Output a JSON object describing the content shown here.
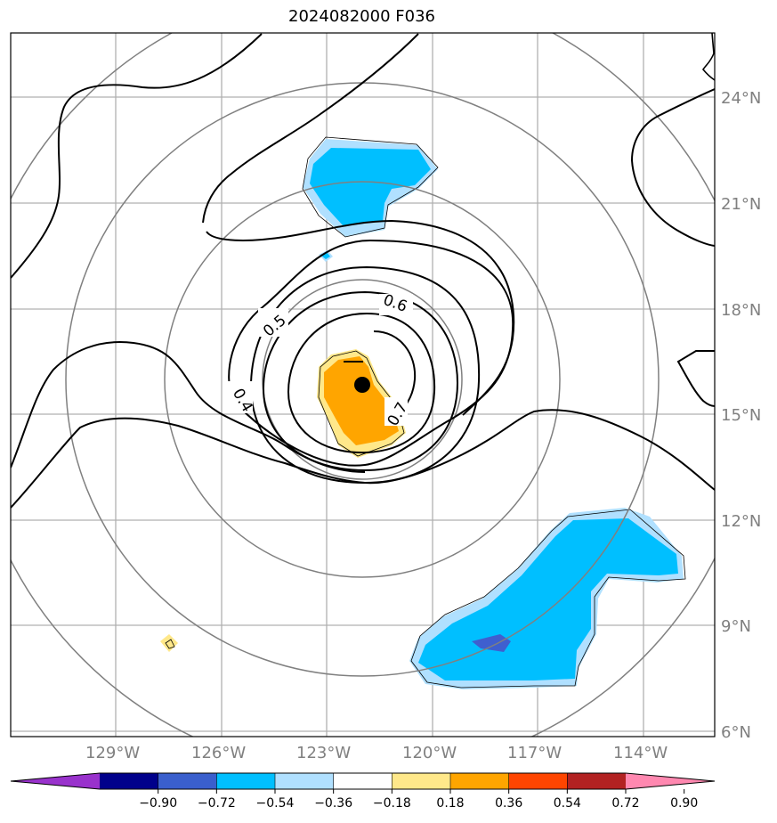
{
  "title": "2024082000 F036",
  "map": {
    "lat_labels": [
      "24°N",
      "21°N",
      "18°N",
      "15°N",
      "12°N",
      "9°N",
      "6°N"
    ],
    "lon_labels": [
      "129°W",
      "126°W",
      "123°W",
      "120°W",
      "117°W",
      "114°W"
    ],
    "contour_labels": [
      "0.4",
      "0.5",
      "0.6",
      "0.7"
    ],
    "center_marker": "storm-center",
    "colors": {
      "light_blue": "#b0e0ff",
      "sky_blue": "#00bfff",
      "royal_blue": "#3f5fcf",
      "yellow": "#ffe88a",
      "orange": "#ffa500",
      "contour": "#000000",
      "range_ring": "#808080",
      "grid": "#b0b0b0"
    }
  },
  "colorbar": {
    "ticks": [
      "−0.90",
      "−0.72",
      "−0.54",
      "−0.36",
      "−0.18",
      "0.18",
      "0.36",
      "0.54",
      "0.72",
      "0.90"
    ],
    "colors": [
      "#9932cc",
      "#00008b",
      "#3a5fcd",
      "#00bfff",
      "#b0e0ff",
      "#ffffff",
      "#ffe88a",
      "#ffa500",
      "#ff4500",
      "#b22222",
      "#ff88b0"
    ]
  }
}
